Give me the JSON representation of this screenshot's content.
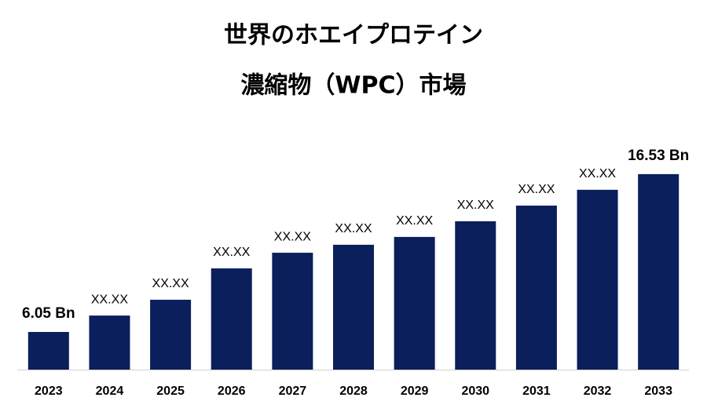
{
  "chart_data": {
    "type": "bar",
    "title": [
      "世界のホエイプロテイン",
      "濃縮物（WPC）市場"
    ],
    "categories": [
      "2023",
      "2024",
      "2025",
      "2026",
      "2027",
      "2028",
      "2029",
      "2030",
      "2031",
      "2032",
      "2033"
    ],
    "values": [
      6.05,
      7.14,
      8.19,
      10.27,
      11.31,
      11.84,
      12.36,
      13.4,
      14.44,
      15.49,
      16.53
    ],
    "value_labels": [
      "6.05 Bn",
      "XX.XX",
      "XX.XX",
      "XX.XX",
      "XX.XX",
      "XX.XX",
      "XX.XX",
      "XX.XX",
      "XX.XX",
      "XX.XX",
      "16.53 Bn"
    ],
    "color": "#0b1f5c",
    "ylim": [
      3.55,
      17.67
    ]
  }
}
